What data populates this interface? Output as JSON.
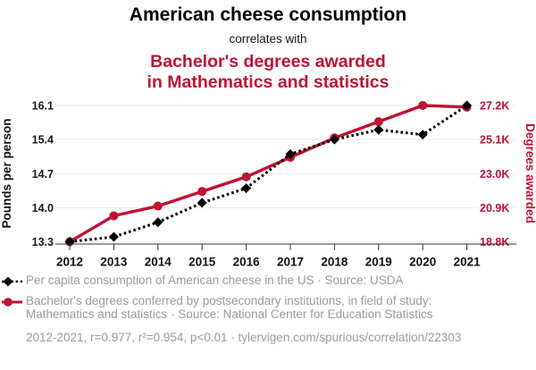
{
  "header": {
    "title": "American cheese consumption",
    "connector": "correlates with",
    "subtitle_line1": "Bachelor's degrees awarded",
    "subtitle_line2": "in Mathematics and statistics"
  },
  "colors": {
    "series_cheese": "#000000",
    "series_degrees": "#c11233",
    "accent_red": "#c11233",
    "legend_text": "#9b9b9b",
    "grid": "#ebebeb",
    "axis": "#333333",
    "tick_label": "#1a1a1a"
  },
  "chart_data": {
    "type": "line",
    "x": [
      2012,
      2013,
      2014,
      2015,
      2016,
      2017,
      2018,
      2019,
      2020,
      2021
    ],
    "x_ticks": [
      "2012",
      "2013",
      "2014",
      "2015",
      "2016",
      "2017",
      "2018",
      "2019",
      "2020",
      "2021"
    ],
    "series": [
      {
        "name": "Per capita consumption of American cheese in the US",
        "axis": "left",
        "line": "dashed",
        "marker": "diamond",
        "color": "#000000",
        "values": [
          13.3,
          13.4,
          13.7,
          14.1,
          14.4,
          15.1,
          15.4,
          15.6,
          15.5,
          16.1
        ],
        "unit": "pounds per person"
      },
      {
        "name": "Bachelor's degrees conferred by postsecondary institutions, in field of study: Mathematics and statistics",
        "axis": "right",
        "line": "solid",
        "marker": "circle",
        "color": "#c11233",
        "values": [
          18.8,
          20.4,
          21.0,
          21.9,
          22.8,
          24.0,
          25.2,
          26.2,
          27.2,
          27.1
        ],
        "unit": "thousands of degrees awarded"
      }
    ],
    "left_axis": {
      "label": "Pounds per person",
      "min": 13.3,
      "max": 16.1,
      "ticks": [
        "13.3",
        "14.0",
        "14.7",
        "15.4",
        "16.1"
      ]
    },
    "right_axis": {
      "label": "Degrees awarded",
      "min": 18.8,
      "max": 27.2,
      "ticks": [
        "18.8K",
        "20.9K",
        "23.0K",
        "25.1K",
        "27.2K"
      ]
    },
    "grid": true,
    "legend_position": "bottom"
  },
  "legend": {
    "items": [
      {
        "label": "Per capita consumption of American cheese in the US · Source: USDA",
        "marker": "black-diamond-dashed"
      },
      {
        "label": "Bachelor's degrees conferred by postsecondary institutions, in field of study: Mathematics and statistics · Source: National Center for Education Statistics",
        "marker": "red-circle-solid"
      }
    ]
  },
  "footer": {
    "text": "2012-2021, r=0.977, r²=0.954, p<0.01 · tylervigen.com/spurious/correlation/22303"
  }
}
